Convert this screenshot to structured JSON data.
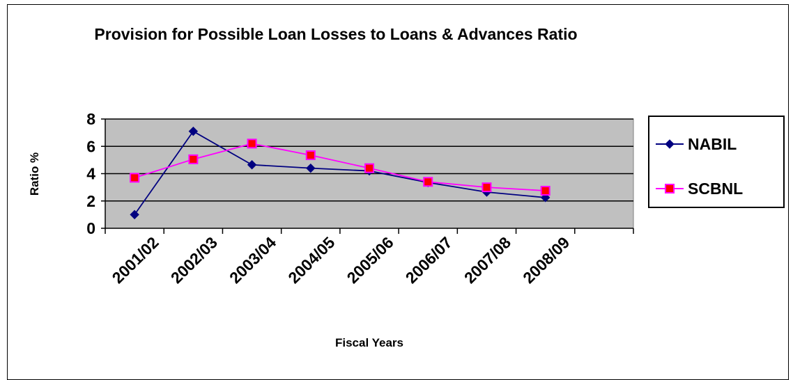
{
  "chart_data": {
    "type": "line",
    "title": "Provision for Possible Loan Losses to Loans & Advances Ratio",
    "xlabel": "Fiscal Years",
    "ylabel": "Ratio %",
    "categories": [
      "2001/02",
      "2002/03",
      "2003/04",
      "2004/05",
      "2005/06",
      "2006/07",
      "2007/08",
      "2008/09"
    ],
    "ylim": [
      0,
      8
    ],
    "yticks": [
      "0",
      "2",
      "4",
      "6",
      "8"
    ],
    "grid": true,
    "legend": "right",
    "plot_background": "#c0c0c0",
    "series": [
      {
        "name": "NABIL",
        "color": "#000080",
        "marker": "diamond",
        "values": [
          1.0,
          7.1,
          4.65,
          4.4,
          4.2,
          3.35,
          2.65,
          2.25
        ]
      },
      {
        "name": "SCBNL",
        "color": "#ff00ff",
        "marker": "square",
        "marker_fill": "#ff0000",
        "values": [
          3.7,
          5.05,
          6.2,
          5.35,
          4.4,
          3.4,
          3.0,
          2.75
        ]
      }
    ]
  }
}
